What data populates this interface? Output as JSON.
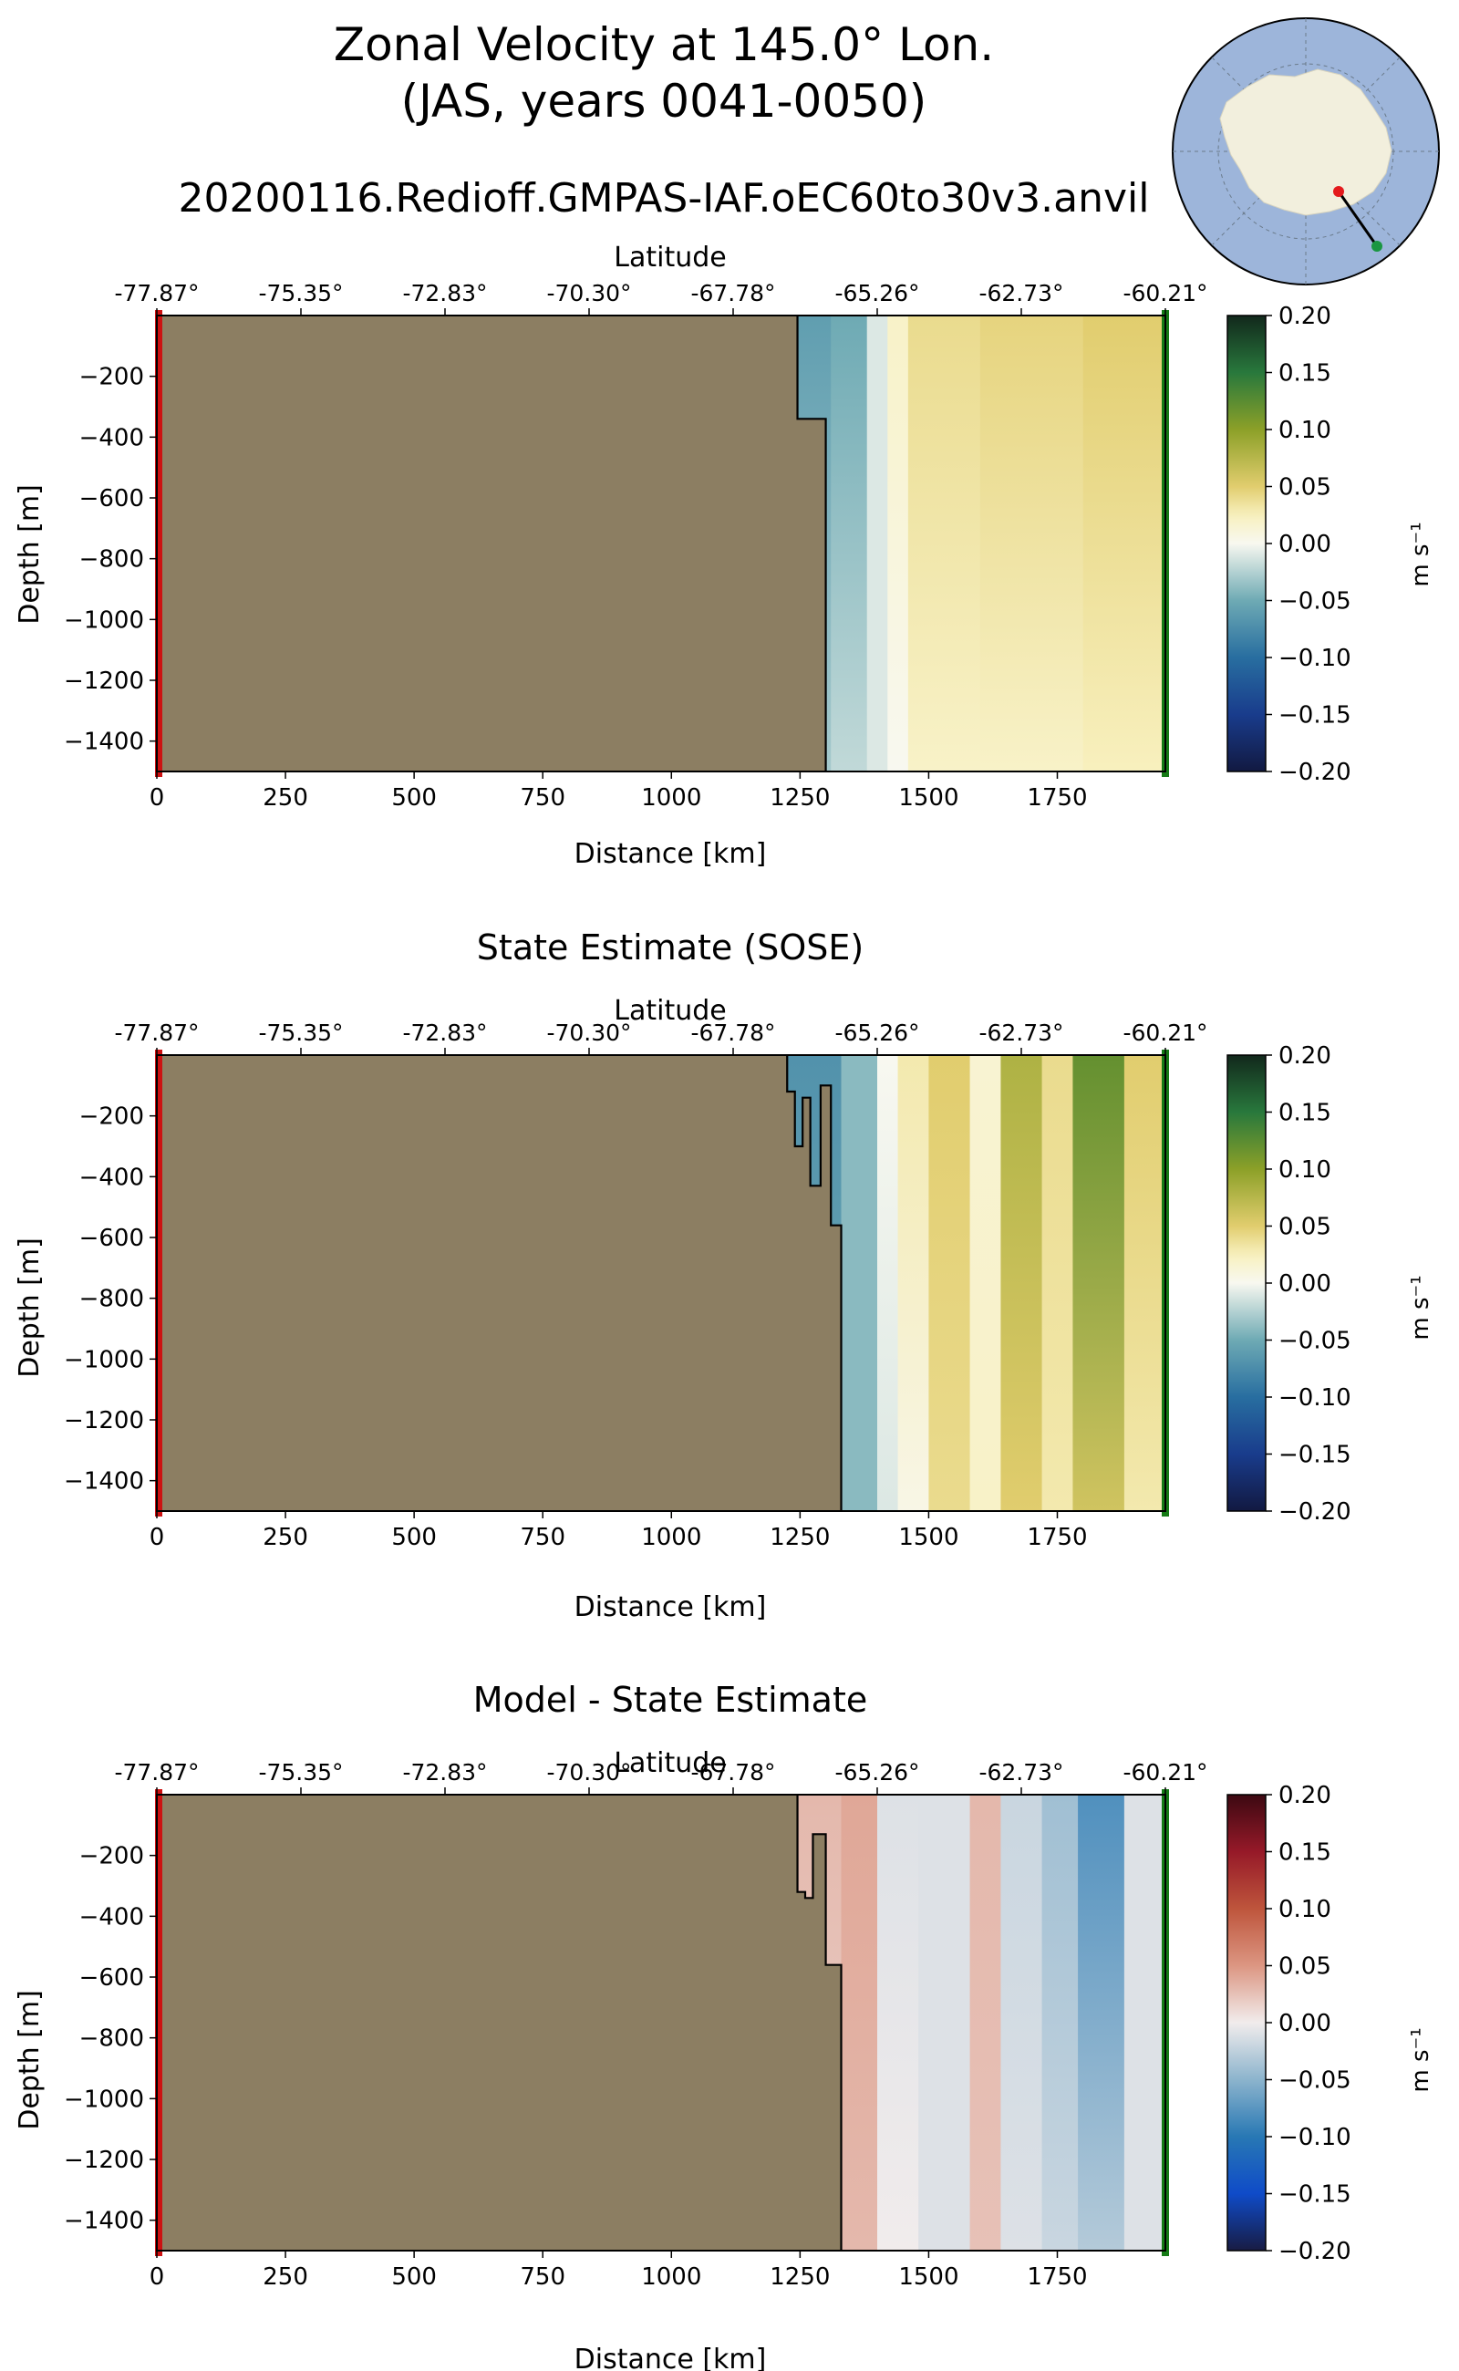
{
  "figure": {
    "title_line1": "Zonal Velocity at 145.0° Lon.",
    "title_line2": "(JAS, years 0041-0050)",
    "run_name": "20200116.Redioff.GMPAS-IAF.oEC60to30v3.anvil"
  },
  "inset_map": {
    "icon": "antarctic-polar-map-icon",
    "start_marker_color": "#e41a1c",
    "end_marker_color": "#1a9641"
  },
  "colors": {
    "land": "#8c7e62",
    "start_edge": "#cc1111",
    "end_edge": "#157a15"
  },
  "chart_data": [
    {
      "type": "heatmap",
      "title": "",
      "xlabel": "Distance [km]",
      "ylabel": "Depth [m]",
      "top_axis_label": "Latitude",
      "top_ticks": [
        "-77.87°",
        "-75.35°",
        "-72.83°",
        "-70.30°",
        "-67.78°",
        "-65.26°",
        "-62.73°",
        "-60.21°"
      ],
      "top_tick_km": [
        0,
        280,
        560,
        840,
        1120,
        1400,
        1680,
        1960
      ],
      "xticks": [
        0,
        250,
        500,
        750,
        1000,
        1250,
        1500,
        1750
      ],
      "yticks": [
        -200,
        -400,
        -600,
        -800,
        -1000,
        -1200,
        -1400
      ],
      "xlim": [
        0,
        1960
      ],
      "ylim": [
        -1500,
        0
      ],
      "colormap": "speed",
      "colorbar": {
        "label": "m s⁻¹",
        "min": -0.2,
        "max": 0.2,
        "ticks": [
          "0.20",
          "0.15",
          "0.10",
          "0.05",
          "0.00",
          "−0.05",
          "−0.10",
          "−0.15",
          "−0.20"
        ]
      },
      "bathymetry": [
        [
          1245,
          0
        ],
        [
          1245,
          -340
        ],
        [
          1300,
          -340
        ],
        [
          1300,
          -1500
        ]
      ],
      "columns": [
        {
          "x0": 1245,
          "x1": 1310,
          "top": -0.06,
          "bottom": -0.03
        },
        {
          "x0": 1310,
          "x1": 1380,
          "top": -0.05,
          "bottom": -0.02
        },
        {
          "x0": 1380,
          "x1": 1420,
          "top": -0.01,
          "bottom": -0.01
        },
        {
          "x0": 1420,
          "x1": 1460,
          "top": 0.02,
          "bottom": 0.0
        },
        {
          "x0": 1460,
          "x1": 1600,
          "top": 0.04,
          "bottom": 0.02
        },
        {
          "x0": 1600,
          "x1": 1800,
          "top": 0.045,
          "bottom": 0.02
        },
        {
          "x0": 1800,
          "x1": 1960,
          "top": 0.05,
          "bottom": 0.025
        }
      ]
    },
    {
      "type": "heatmap",
      "title": "State Estimate (SOSE)",
      "xlabel": "Distance [km]",
      "ylabel": "Depth [m]",
      "top_axis_label": "Latitude",
      "top_ticks": [
        "-77.87°",
        "-75.35°",
        "-72.83°",
        "-70.30°",
        "-67.78°",
        "-65.26°",
        "-62.73°",
        "-60.21°"
      ],
      "top_tick_km": [
        0,
        280,
        560,
        840,
        1120,
        1400,
        1680,
        1960
      ],
      "xticks": [
        0,
        250,
        500,
        750,
        1000,
        1250,
        1500,
        1750
      ],
      "yticks": [
        -200,
        -400,
        -600,
        -800,
        -1000,
        -1200,
        -1400
      ],
      "xlim": [
        0,
        1960
      ],
      "ylim": [
        -1500,
        0
      ],
      "colormap": "speed",
      "colorbar": {
        "label": "m s⁻¹",
        "min": -0.2,
        "max": 0.2,
        "ticks": [
          "0.20",
          "0.15",
          "0.10",
          "0.05",
          "0.00",
          "−0.05",
          "−0.10",
          "−0.15",
          "−0.20"
        ]
      },
      "bathymetry": [
        [
          1225,
          0
        ],
        [
          1225,
          -120
        ],
        [
          1240,
          -120
        ],
        [
          1240,
          -300
        ],
        [
          1255,
          -300
        ],
        [
          1255,
          -140
        ],
        [
          1270,
          -140
        ],
        [
          1270,
          -430
        ],
        [
          1290,
          -430
        ],
        [
          1290,
          -100
        ],
        [
          1310,
          -100
        ],
        [
          1310,
          -560
        ],
        [
          1330,
          -560
        ],
        [
          1330,
          -1500
        ]
      ],
      "columns": [
        {
          "x0": 1225,
          "x1": 1330,
          "top": -0.07,
          "bottom": -0.05
        },
        {
          "x0": 1330,
          "x1": 1400,
          "top": -0.04,
          "bottom": -0.04
        },
        {
          "x0": 1400,
          "x1": 1440,
          "top": 0.0,
          "bottom": -0.01
        },
        {
          "x0": 1440,
          "x1": 1500,
          "top": 0.03,
          "bottom": 0.005
        },
        {
          "x0": 1500,
          "x1": 1580,
          "top": 0.05,
          "bottom": 0.04
        },
        {
          "x0": 1580,
          "x1": 1640,
          "top": 0.015,
          "bottom": 0.02
        },
        {
          "x0": 1640,
          "x1": 1720,
          "top": 0.08,
          "bottom": 0.05
        },
        {
          "x0": 1720,
          "x1": 1780,
          "top": 0.04,
          "bottom": 0.03
        },
        {
          "x0": 1780,
          "x1": 1880,
          "top": 0.12,
          "bottom": 0.06
        },
        {
          "x0": 1880,
          "x1": 1960,
          "top": 0.05,
          "bottom": 0.03
        }
      ]
    },
    {
      "type": "heatmap",
      "title": "Model - State Estimate",
      "xlabel": "Distance [km]",
      "ylabel": "Depth [m]",
      "top_axis_label": "Latitude",
      "top_ticks": [
        "-77.87°",
        "-75.35°",
        "-72.83°",
        "-70.30°",
        "-67.78°",
        "-65.26°",
        "-62.73°",
        "-60.21°"
      ],
      "top_tick_km": [
        0,
        280,
        560,
        840,
        1120,
        1400,
        1680,
        1960
      ],
      "xticks": [
        0,
        250,
        500,
        750,
        1000,
        1250,
        1500,
        1750
      ],
      "yticks": [
        -200,
        -400,
        -600,
        -800,
        -1000,
        -1200,
        -1400
      ],
      "xlim": [
        0,
        1960
      ],
      "ylim": [
        -1500,
        0
      ],
      "colormap": "balance",
      "colorbar": {
        "label": "m s⁻¹",
        "min": -0.2,
        "max": 0.2,
        "ticks": [
          "0.20",
          "0.15",
          "0.10",
          "0.05",
          "0.00",
          "−0.05",
          "−0.10",
          "−0.15",
          "−0.20"
        ]
      },
      "bathymetry": [
        [
          1245,
          0
        ],
        [
          1245,
          -320
        ],
        [
          1260,
          -320
        ],
        [
          1260,
          -340
        ],
        [
          1275,
          -340
        ],
        [
          1275,
          -130
        ],
        [
          1300,
          -130
        ],
        [
          1300,
          -560
        ],
        [
          1330,
          -560
        ],
        [
          1330,
          -1500
        ]
      ],
      "columns": [
        {
          "x0": 1245,
          "x1": 1330,
          "top": 0.03,
          "bottom": 0.015
        },
        {
          "x0": 1330,
          "x1": 1400,
          "top": 0.04,
          "bottom": 0.03
        },
        {
          "x0": 1400,
          "x1": 1480,
          "top": -0.01,
          "bottom": 0.0
        },
        {
          "x0": 1480,
          "x1": 1580,
          "top": -0.01,
          "bottom": -0.01
        },
        {
          "x0": 1580,
          "x1": 1640,
          "top": 0.03,
          "bottom": 0.025
        },
        {
          "x0": 1640,
          "x1": 1720,
          "top": -0.02,
          "bottom": -0.01
        },
        {
          "x0": 1720,
          "x1": 1790,
          "top": -0.04,
          "bottom": -0.02
        },
        {
          "x0": 1790,
          "x1": 1880,
          "top": -0.08,
          "bottom": -0.03
        },
        {
          "x0": 1880,
          "x1": 1960,
          "top": -0.01,
          "bottom": -0.01
        }
      ]
    }
  ]
}
